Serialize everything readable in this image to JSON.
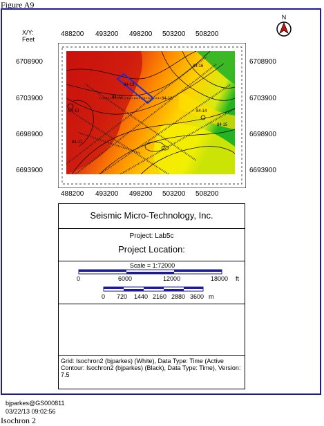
{
  "figure_label": "Figure A9",
  "north_arrow": {
    "letter": "N",
    "icon": "north-arrow-icon"
  },
  "axis": {
    "xy_label": "X/Y:",
    "units_label": "Feet",
    "x_ticks": [
      "488200",
      "493200",
      "498200",
      "503200",
      "508200"
    ],
    "y_ticks": [
      "6708900",
      "6703900",
      "6698900",
      "6693900"
    ]
  },
  "contour_labels": [
    "84-12",
    "84-13",
    "84-11",
    "84-10",
    "84-12",
    "84-14",
    "84-15",
    "84-16"
  ],
  "colors": {
    "frame": "#1a1a9a",
    "survey_box": "#1f2bd6",
    "low_time": "#cc1a14",
    "mid_time": "#ff8800",
    "high_time": "#f6f000",
    "edge": "#22b422"
  },
  "title_block": {
    "company": "Seismic Micro-Technology, Inc.",
    "project": "Project: Lab5c",
    "location": "Project Location:"
  },
  "scale": {
    "label": "Scale = 1:72000",
    "feet_ticks": [
      "0",
      "6000",
      "12000",
      "18000"
    ],
    "feet_unit": "ft",
    "meter_ticks": [
      "0",
      "720",
      "1440",
      "2160",
      "2880",
      "3600"
    ],
    "meter_unit": "m"
  },
  "grid_info": "Grid: Isochron2 (bjparkes) (White), Data Type: Time (Active Contour: Isochron2 (bjparkes) (Black), Data Type: Time), Version: 7.5",
  "footer": {
    "user": "bjparkes@GS000811",
    "timestamp": "03/22/13  09:02:56",
    "caption": "Isochron 2"
  }
}
